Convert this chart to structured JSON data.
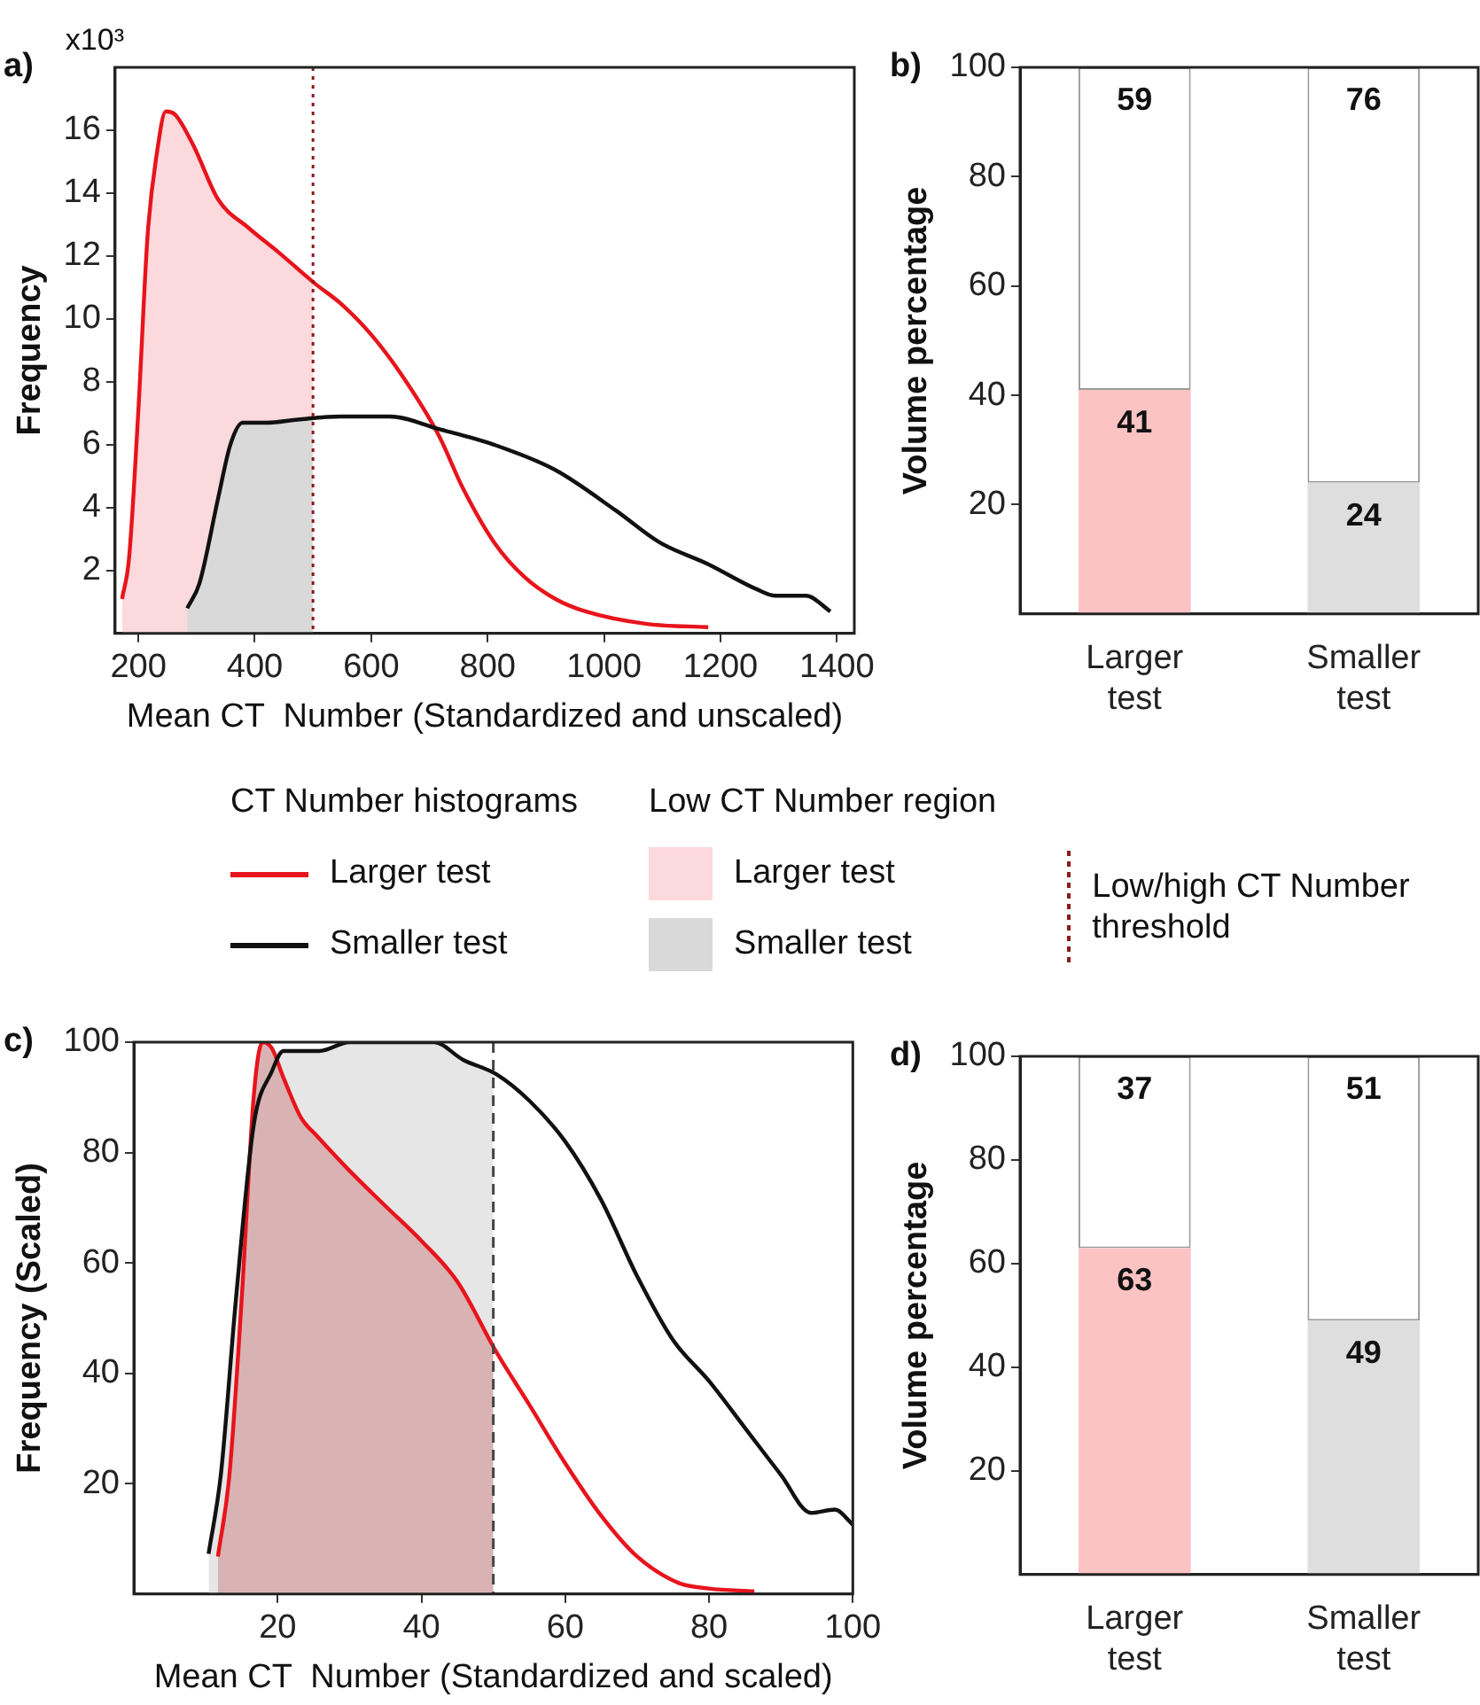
{
  "chart_data": [
    {
      "type": "line",
      "xlabel": "Mean CT  Number (Standardized and unscaled)",
      "ylabel": "Frequency",
      "legend_title": "CT Number histograms",
      "legend": "bottom",
      "grid": false,
      "marker": "none",
      "xlim": [
        160,
        1430
      ],
      "xticks": [
        200,
        400,
        600,
        800,
        1000,
        1200,
        1400
      ],
      "ylim": [
        0,
        18
      ],
      "yticks": [
        2,
        4,
        6,
        8,
        10,
        12,
        14,
        16
      ],
      "annotations": [
        "a)",
        "x10³",
        "Low CT Number region"
      ],
      "ref_lines": [
        {
          "axis": "x",
          "value": 500,
          "label": "Low/high CT Number threshold",
          "color": "#8b1a1a",
          "line_style": "dotted"
        }
      ],
      "series": [
        {
          "type": "area",
          "name": "Larger test",
          "color": "#fcd9dc",
          "x": [
            172,
            184,
            200,
            216,
            232,
            247,
            263,
            295,
            337,
            389,
            442,
            500
          ],
          "values": [
            1.1,
            2.4,
            7.1,
            12.7,
            15.3,
            16.6,
            16.5,
            15.5,
            13.8,
            12.9,
            12.1,
            11.2
          ]
        },
        {
          "type": "area",
          "name": "Smaller test",
          "color": "#d9d9d9",
          "x": [
            284,
            305,
            337,
            358,
            379,
            421,
            474,
            500
          ],
          "values": [
            0.8,
            1.6,
            4.3,
            6.0,
            6.7,
            6.7,
            6.8,
            6.8
          ]
        },
        {
          "type": "line",
          "name": "Larger test",
          "color": "#e8141c",
          "x": [
            172,
            184,
            200,
            216,
            232,
            247,
            263,
            295,
            337,
            389,
            442,
            505,
            547,
            600,
            653,
            716,
            758,
            811,
            863,
            916,
            968,
            1074,
            1179
          ],
          "values": [
            1.1,
            2.4,
            7.1,
            12.7,
            15.3,
            16.6,
            16.5,
            15.5,
            13.8,
            12.9,
            12.1,
            11.1,
            10.5,
            9.5,
            8.2,
            6.3,
            4.6,
            2.9,
            1.8,
            1.1,
            0.7,
            0.3,
            0.2
          ]
        },
        {
          "type": "line",
          "name": "Smaller test",
          "color": "#111111",
          "x": [
            284,
            305,
            337,
            358,
            379,
            421,
            474,
            547,
            632,
            716,
            811,
            916,
            1021,
            1095,
            1179,
            1263,
            1295,
            1347,
            1389
          ],
          "values": [
            0.8,
            1.6,
            4.3,
            6.0,
            6.7,
            6.7,
            6.8,
            6.9,
            6.9,
            6.5,
            6.0,
            5.2,
            3.9,
            2.9,
            2.2,
            1.4,
            1.2,
            1.2,
            0.7
          ]
        }
      ]
    },
    {
      "type": "bar",
      "stacked": true,
      "data_labels": true,
      "ylabel": "Volume percentage",
      "grid": false,
      "ylim": [
        0,
        100
      ],
      "yticks": [
        20,
        40,
        60,
        80,
        100
      ],
      "categories": [
        "Larger test",
        "Smaller test"
      ],
      "annotations": [
        "b)"
      ],
      "series": [
        {
          "colors": [
            "#fcc3c3",
            "#dedede"
          ],
          "values": [
            41,
            24
          ]
        },
        {
          "color": "#ffffff",
          "values": [
            59,
            76
          ]
        }
      ]
    },
    {
      "type": "line",
      "xlabel": "Mean CT  Number (Standardized and scaled)",
      "ylabel": "Frequency (Scaled)",
      "grid": false,
      "marker": "none",
      "xlim": [
        0,
        100
      ],
      "xticks": [
        20,
        40,
        60,
        80,
        100
      ],
      "ylim": [
        0,
        100
      ],
      "yticks": [
        20,
        40,
        60,
        80,
        100
      ],
      "annotations": [
        "c)"
      ],
      "ref_lines": [
        {
          "axis": "x",
          "value": 50,
          "color": "#444444",
          "line_style": "dashed"
        }
      ],
      "series": [
        {
          "type": "area",
          "color": "#e6e6e6",
          "x": [
            10.4,
            12.1,
            14.2,
            16.7,
            20.8,
            25.8,
            30,
            38.3,
            41.7,
            45.8,
            50
          ],
          "values": [
            7.3,
            21.6,
            53.4,
            85.2,
            98.4,
            98.4,
            100,
            100,
            100,
            96.8,
            94.5
          ]
        },
        {
          "type": "area",
          "color": "#d9b3b3",
          "x": [
            11.7,
            13.3,
            15,
            16.7,
            17.9,
            19.2,
            20.8,
            23.3,
            25.4,
            30,
            35,
            40,
            45,
            50
          ],
          "values": [
            6.8,
            21.6,
            53.4,
            90.5,
            100,
            98.9,
            93.6,
            86.2,
            83.1,
            76.7,
            70.3,
            64,
            56.6,
            44.5
          ]
        },
        {
          "type": "line",
          "color": "#e8141c",
          "x": [
            11.7,
            13.3,
            15,
            16.7,
            17.9,
            19.2,
            20.8,
            23.3,
            25.4,
            30,
            35,
            40,
            45,
            50.4,
            55,
            60,
            65,
            70,
            75.8,
            80,
            86.3
          ],
          "values": [
            6.8,
            21.6,
            53.4,
            90.5,
            100,
            98.9,
            93.6,
            86.2,
            83.1,
            76.7,
            70.3,
            64,
            56.6,
            43.9,
            34.3,
            23.7,
            14.2,
            6.8,
            2,
            1,
            0.5
          ]
        },
        {
          "type": "line",
          "color": "#111111",
          "x": [
            10.4,
            12.1,
            14.2,
            16.7,
            19.2,
            20.8,
            25.8,
            30,
            38.3,
            41.7,
            45.8,
            50.4,
            55,
            60,
            65,
            70,
            75,
            80,
            85,
            90,
            94.2,
            97.5,
            100
          ],
          "values": [
            7.3,
            21.6,
            53.4,
            85.2,
            94.7,
            98.4,
            98.4,
            100,
            100,
            100,
            96.8,
            94.2,
            89.4,
            82,
            71.4,
            57.6,
            46,
            38.6,
            30.1,
            21.6,
            14.7,
            15.3,
            12.6
          ]
        }
      ]
    },
    {
      "type": "bar",
      "stacked": true,
      "data_labels": true,
      "ylabel": "Volume percentage",
      "grid": false,
      "ylim": [
        0,
        100
      ],
      "yticks": [
        20,
        40,
        60,
        80,
        100
      ],
      "categories": [
        "Larger test",
        "Smaller test"
      ],
      "annotations": [
        "d)"
      ],
      "series": [
        {
          "colors": [
            "#fcc3c3",
            "#dedede"
          ],
          "values": [
            63,
            49
          ]
        },
        {
          "color": "#ffffff",
          "values": [
            37,
            51
          ]
        }
      ]
    }
  ]
}
